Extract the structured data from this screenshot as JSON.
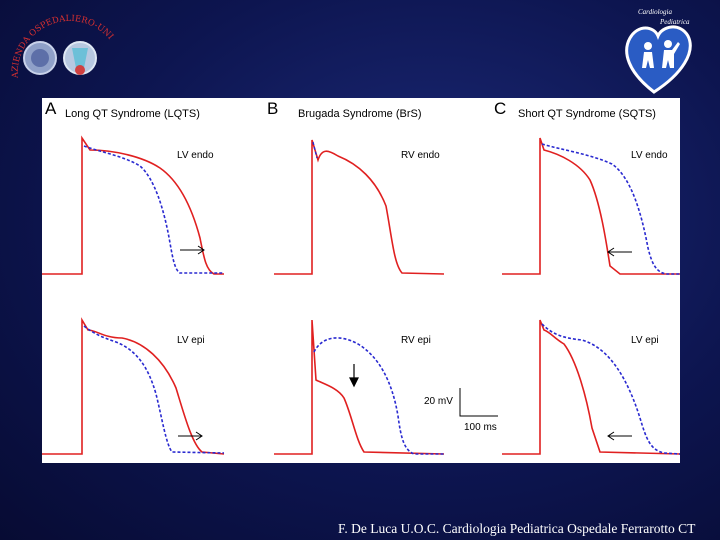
{
  "logo_left": {
    "ring_text": "AZIENDA OSPEDALIERO-UNIVERSITARIA POLICLINICO VITTORIO EMANUELE"
  },
  "logo_right": {
    "line1": "Cardiologia",
    "line2": "Pediatrica",
    "colors": {
      "heart": "#2a5cc4",
      "ring": "#ffffff"
    }
  },
  "panels": [
    {
      "letter": "A",
      "title": "Long QT Syndrome (LQTS)",
      "top_label": "LV endo",
      "bottom_label": "LV epi"
    },
    {
      "letter": "B",
      "title": "Brugada Syndrome (BrS)",
      "top_label": "RV endo",
      "bottom_label": "RV epi"
    },
    {
      "letter": "C",
      "title": "Short QT Syndrome (SQTS)",
      "top_label": "LV endo",
      "bottom_label": "LV epi"
    }
  ],
  "scale": {
    "voltage": "20 mV",
    "time": "100 ms"
  },
  "colors": {
    "solid_trace": "#e02020",
    "dashed_trace": "#2a2ad0",
    "annotation": "#000000"
  },
  "footer": "F. De Luca U.O.C. Cardiologia Pediatrica Ospedale Ferrarotto  CT"
}
